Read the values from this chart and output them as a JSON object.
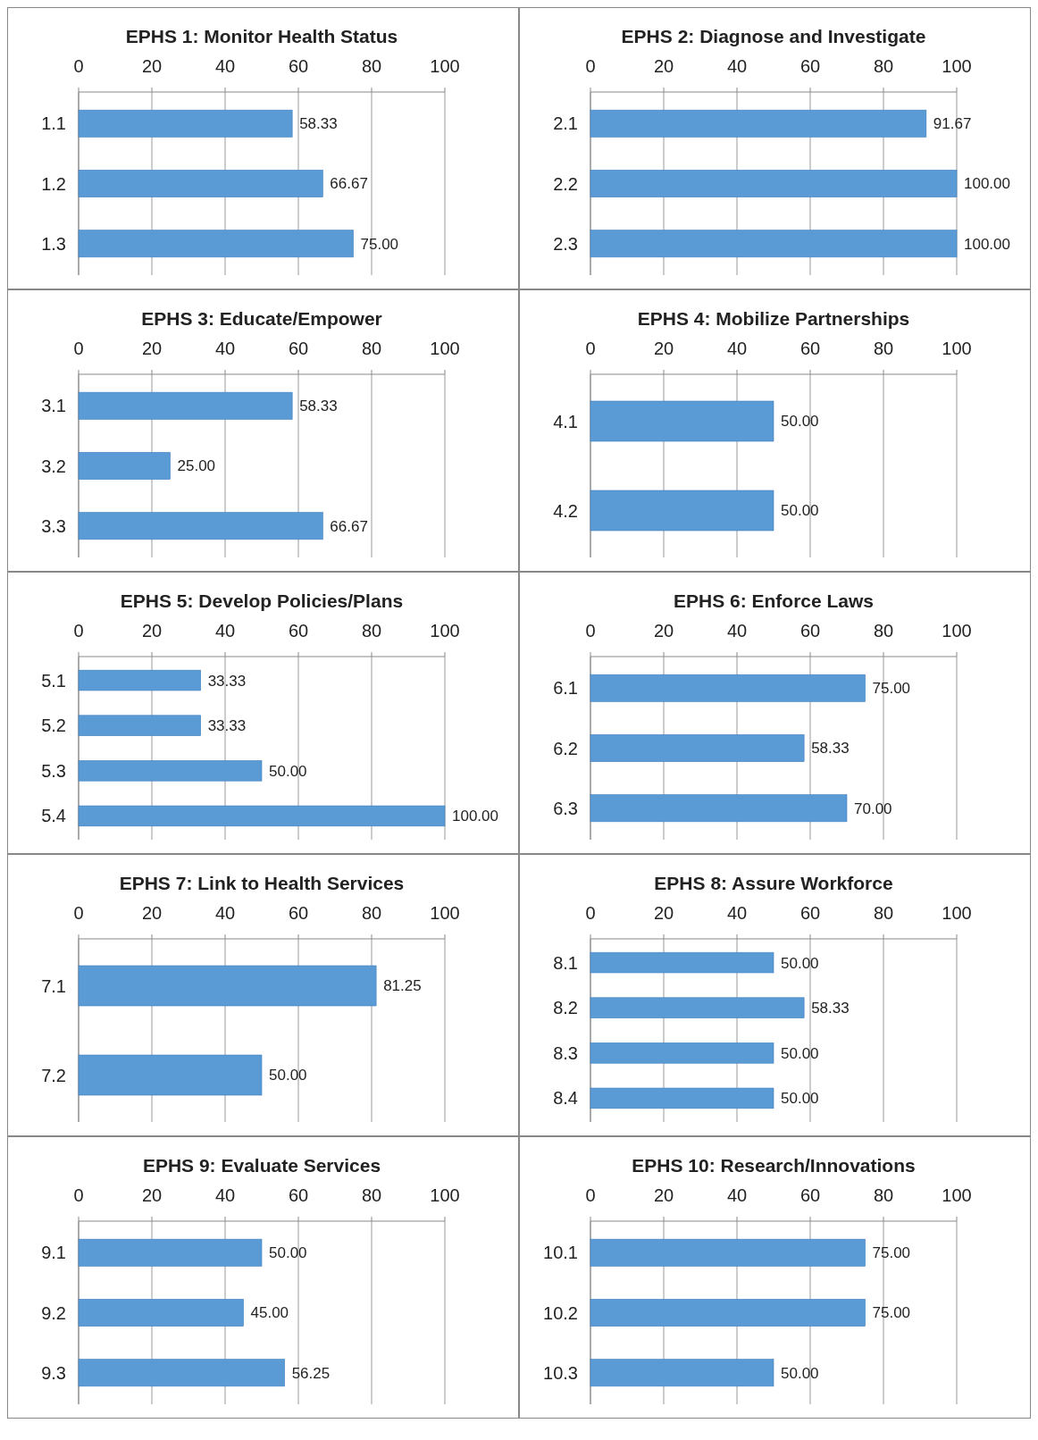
{
  "chart_data": [
    {
      "type": "bar",
      "orientation": "horizontal",
      "title": "EPHS 1: Monitor Health Status",
      "categories": [
        "1.1",
        "1.2",
        "1.3"
      ],
      "values": [
        58.33,
        66.67,
        75.0
      ],
      "value_labels": [
        "58.33",
        "66.67",
        "75.00"
      ],
      "color": "#5b9bd5",
      "xlim": [
        0,
        100
      ],
      "xticks": [
        0,
        20,
        40,
        60,
        80,
        100
      ],
      "grid": "x"
    },
    {
      "type": "bar",
      "orientation": "horizontal",
      "title": "EPHS 2: Diagnose and Investigate",
      "categories": [
        "2.1",
        "2.2",
        "2.3"
      ],
      "values": [
        91.67,
        100.0,
        100.0
      ],
      "value_labels": [
        "91.67",
        "100.00",
        "100.00"
      ],
      "color": "#5b9bd5",
      "xlim": [
        0,
        100
      ],
      "xticks": [
        0,
        20,
        40,
        60,
        80,
        100
      ],
      "grid": "x"
    },
    {
      "type": "bar",
      "orientation": "horizontal",
      "title": "EPHS 3: Educate/Empower",
      "categories": [
        "3.1",
        "3.2",
        "3.3"
      ],
      "values": [
        58.33,
        25.0,
        66.67
      ],
      "value_labels": [
        "58.33",
        "25.00",
        "66.67"
      ],
      "color": "#5b9bd5",
      "xlim": [
        0,
        100
      ],
      "xticks": [
        0,
        20,
        40,
        60,
        80,
        100
      ],
      "grid": "x"
    },
    {
      "type": "bar",
      "orientation": "horizontal",
      "title": "EPHS 4: Mobilize Partnerships",
      "categories": [
        "4.1",
        "4.2"
      ],
      "values": [
        50.0,
        50.0
      ],
      "value_labels": [
        "50.00",
        "50.00"
      ],
      "color": "#5b9bd5",
      "xlim": [
        0,
        100
      ],
      "xticks": [
        0,
        20,
        40,
        60,
        80,
        100
      ],
      "grid": "x"
    },
    {
      "type": "bar",
      "orientation": "horizontal",
      "title": "EPHS 5: Develop Policies/Plans",
      "categories": [
        "5.1",
        "5.2",
        "5.3",
        "5.4"
      ],
      "values": [
        33.33,
        33.33,
        50.0,
        100.0
      ],
      "value_labels": [
        "33.33",
        "33.33",
        "50.00",
        "100.00"
      ],
      "color": "#5b9bd5",
      "xlim": [
        0,
        100
      ],
      "xticks": [
        0,
        20,
        40,
        60,
        80,
        100
      ],
      "grid": "x"
    },
    {
      "type": "bar",
      "orientation": "horizontal",
      "title": "EPHS 6: Enforce Laws",
      "categories": [
        "6.1",
        "6.2",
        "6.3"
      ],
      "values": [
        75.0,
        58.33,
        70.0
      ],
      "value_labels": [
        "75.00",
        "58.33",
        "70.00"
      ],
      "color": "#5b9bd5",
      "xlim": [
        0,
        100
      ],
      "xticks": [
        0,
        20,
        40,
        60,
        80,
        100
      ],
      "grid": "x"
    },
    {
      "type": "bar",
      "orientation": "horizontal",
      "title": "EPHS 7: Link to Health Services",
      "categories": [
        "7.1",
        "7.2"
      ],
      "values": [
        81.25,
        50.0
      ],
      "value_labels": [
        "81.25",
        "50.00"
      ],
      "color": "#5b9bd5",
      "xlim": [
        0,
        100
      ],
      "xticks": [
        0,
        20,
        40,
        60,
        80,
        100
      ],
      "grid": "x"
    },
    {
      "type": "bar",
      "orientation": "horizontal",
      "title": "EPHS 8: Assure Workforce",
      "categories": [
        "8.1",
        "8.2",
        "8.3",
        "8.4"
      ],
      "values": [
        50.0,
        58.33,
        50.0,
        50.0
      ],
      "value_labels": [
        "50.00",
        "58.33",
        "50.00",
        "50.00"
      ],
      "color": "#5b9bd5",
      "xlim": [
        0,
        100
      ],
      "xticks": [
        0,
        20,
        40,
        60,
        80,
        100
      ],
      "grid": "x"
    },
    {
      "type": "bar",
      "orientation": "horizontal",
      "title": "EPHS 9: Evaluate Services",
      "categories": [
        "9.1",
        "9.2",
        "9.3"
      ],
      "values": [
        50.0,
        45.0,
        56.25
      ],
      "value_labels": [
        "50.00",
        "45.00",
        "56.25"
      ],
      "color": "#5b9bd5",
      "xlim": [
        0,
        100
      ],
      "xticks": [
        0,
        20,
        40,
        60,
        80,
        100
      ],
      "grid": "x"
    },
    {
      "type": "bar",
      "orientation": "horizontal",
      "title": "EPHS 10: Research/Innovations",
      "categories": [
        "10.1",
        "10.2",
        "10.3"
      ],
      "values": [
        75.0,
        75.0,
        50.0
      ],
      "value_labels": [
        "75.00",
        "75.00",
        "50.00"
      ],
      "color": "#5b9bd5",
      "xlim": [
        0,
        100
      ],
      "xticks": [
        0,
        20,
        40,
        60,
        80,
        100
      ],
      "grid": "x"
    }
  ]
}
